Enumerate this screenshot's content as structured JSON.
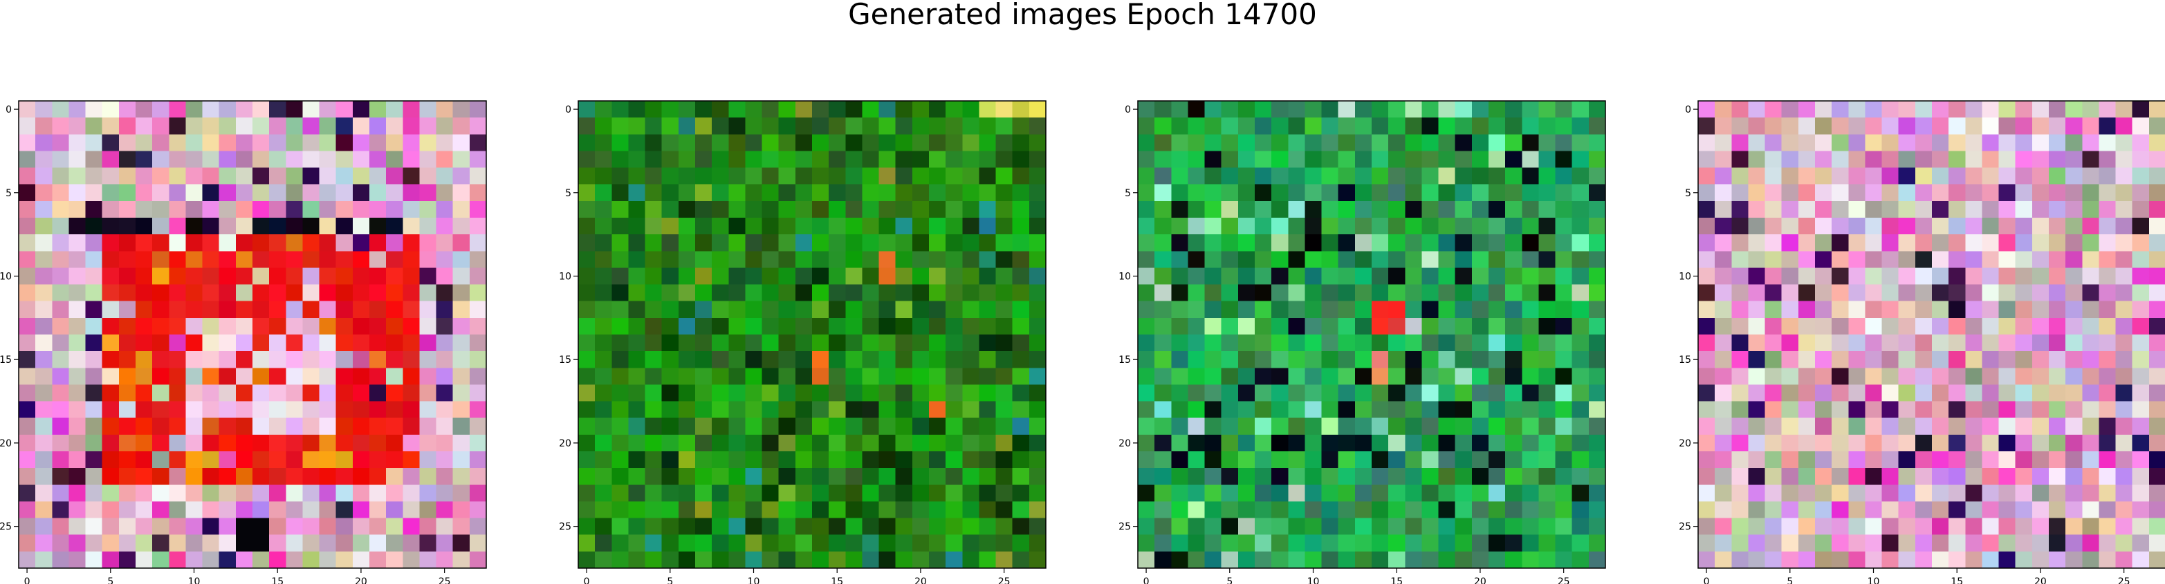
{
  "figure": {
    "title": "Generated images Epoch 14700"
  },
  "panels": [
    {
      "name": "image-1",
      "x_ticks": [
        "0",
        "5",
        "10",
        "15",
        "20",
        "25"
      ],
      "y_ticks": [
        "0",
        "5",
        "10",
        "15",
        "20",
        "25"
      ],
      "dominant_theme": "pink-pastel-with-red-blob"
    },
    {
      "name": "image-2",
      "x_ticks": [
        "0",
        "5",
        "10",
        "15",
        "20",
        "25"
      ],
      "y_ticks": [
        "0",
        "5",
        "10",
        "15",
        "20",
        "25"
      ],
      "dominant_theme": "green"
    },
    {
      "name": "image-3",
      "x_ticks": [
        "0",
        "5",
        "10",
        "15",
        "20",
        "25"
      ],
      "y_ticks": [
        "0",
        "5",
        "10",
        "15",
        "20",
        "25"
      ],
      "dominant_theme": "green-teal"
    },
    {
      "name": "image-4",
      "x_ticks": [
        "0",
        "5",
        "10",
        "15",
        "20",
        "25"
      ],
      "y_ticks": [
        "0",
        "5",
        "10",
        "15",
        "20",
        "25"
      ],
      "dominant_theme": "pink-pastel"
    }
  ],
  "colors": {
    "background": "#ffffff",
    "axis": "#000000",
    "pink_theme": "#c79ac0",
    "red_blob": "#e3131f",
    "green_theme": "#1c7f24",
    "teal_green_theme": "#14a34b"
  }
}
